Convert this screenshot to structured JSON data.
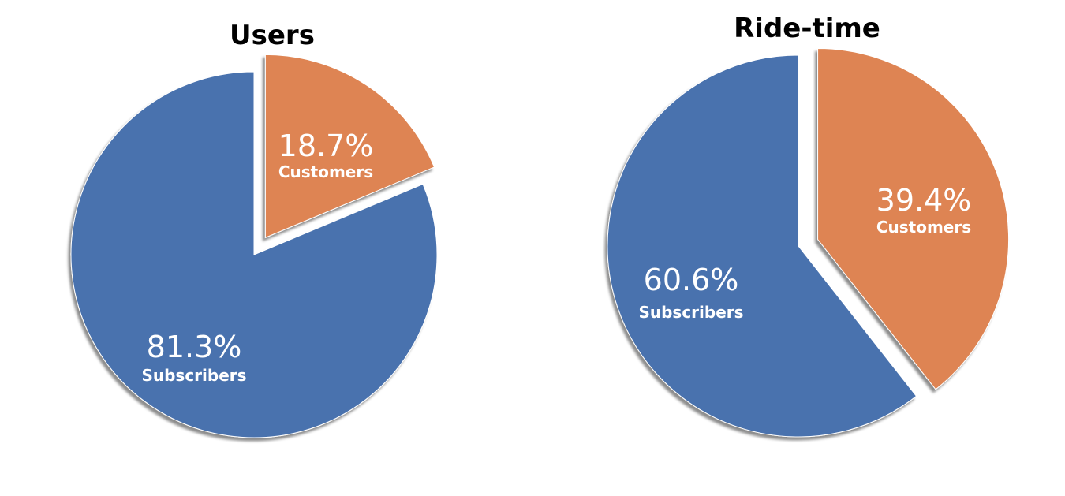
{
  "chart_data": [
    {
      "type": "pie",
      "title": "Users",
      "categories": [
        "Subscribers",
        "Customers"
      ],
      "values": [
        81.3,
        18.7
      ],
      "value_labels": [
        "81.3%",
        "18.7%"
      ],
      "colors": [
        "#4a72ae",
        "#de8452"
      ],
      "exploded": [
        "Customers"
      ]
    },
    {
      "type": "pie",
      "title": "Ride-time",
      "categories": [
        "Subscribers",
        "Customers"
      ],
      "values": [
        60.6,
        39.4
      ],
      "value_labels": [
        "60.6%",
        "39.4%"
      ],
      "colors": [
        "#4a72ae",
        "#de8452"
      ],
      "exploded": [
        "Customers"
      ]
    }
  ]
}
